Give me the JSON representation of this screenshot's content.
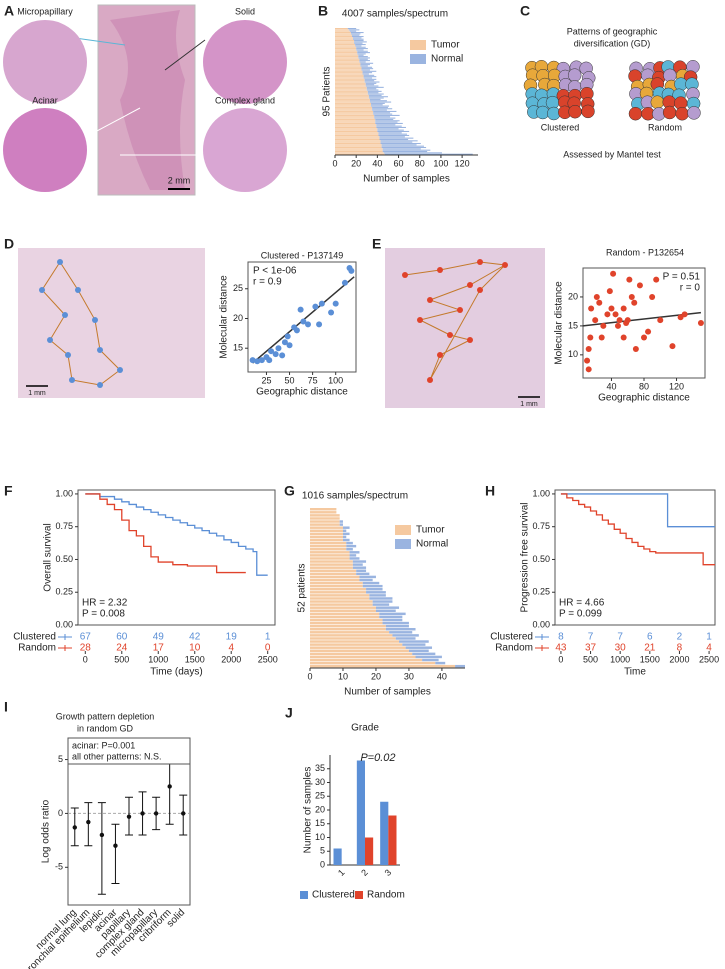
{
  "panel_a": {
    "panel": "A",
    "labels": [
      "Micropapillary",
      "Solid",
      "Acinar",
      "Complex gland"
    ],
    "scale_bar": "2 mm"
  },
  "panel_c": {
    "panel": "C",
    "title": [
      "Patterns of geographic",
      "diversification (GD)"
    ],
    "labels": [
      "Clustered",
      "Random"
    ],
    "footer": "Assessed by Mantel test"
  },
  "panel_d_map": {
    "scale_bar": "1 mm"
  },
  "panel_e_map": {
    "scale_bar": "1 mm"
  },
  "chart_data": [
    {
      "panel": "B",
      "type": "hbar_stacked",
      "title": "4007 samples/spectrum",
      "x_label": "Number of samples",
      "y_label": "95 Patients",
      "xlim": [
        0,
        135
      ],
      "xticks": [
        0,
        20,
        40,
        60,
        80,
        100,
        120
      ],
      "series": [
        {
          "name": "Tumor",
          "color": "#f5c9a0",
          "values": [
            12,
            13,
            14,
            15,
            15,
            16,
            16,
            17,
            17,
            18,
            18,
            18,
            19,
            19,
            20,
            20,
            20,
            21,
            21,
            21,
            22,
            22,
            22,
            23,
            23,
            23,
            24,
            24,
            24,
            25,
            25,
            25,
            26,
            26,
            26,
            27,
            27,
            27,
            28,
            28,
            28,
            29,
            29,
            29,
            30,
            30,
            30,
            31,
            31,
            31,
            32,
            32,
            32,
            33,
            33,
            33,
            34,
            34,
            34,
            35,
            35,
            35,
            36,
            36,
            36,
            37,
            37,
            37,
            38,
            38,
            38,
            38,
            39,
            39,
            39,
            40,
            40,
            40,
            41,
            41,
            41,
            42,
            42,
            42,
            43,
            43,
            43,
            44,
            44,
            44,
            45,
            45,
            45,
            46,
            47
          ]
        },
        {
          "name": "Normal",
          "color": "#9ab4e0",
          "values": [
            8,
            10,
            6,
            12,
            9,
            7,
            11,
            8,
            10,
            9,
            12,
            8,
            10,
            6,
            9,
            11,
            7,
            10,
            12,
            8,
            5,
            9,
            11,
            8,
            10,
            6,
            12,
            9,
            7,
            10,
            11,
            8,
            13,
            9,
            6,
            10,
            12,
            8,
            11,
            9,
            14,
            10,
            8,
            12,
            16,
            9,
            11,
            13,
            10,
            15,
            12,
            18,
            14,
            10,
            16,
            20,
            13,
            11,
            17,
            15,
            19,
            14,
            22,
            16,
            18,
            24,
            15,
            20,
            17,
            23,
            21,
            26,
            18,
            24,
            28,
            20,
            25,
            30,
            22,
            27,
            29,
            24,
            32,
            27,
            35,
            30,
            38,
            33,
            40,
            42,
            36,
            45,
            42,
            55,
            83
          ]
        }
      ]
    },
    {
      "panel": "D",
      "type": "scatter",
      "title": "Clustered - P137149",
      "x_label": "Geographic distance",
      "y_label": "Molecular distance",
      "annotations": [
        "P < 1e-06",
        "r = 0.9"
      ],
      "annotation_corner": "upper left",
      "color": "#5b8fd6",
      "xlim": [
        5,
        122
      ],
      "xticks": [
        25,
        50,
        75,
        100
      ],
      "ylim": [
        11,
        29.5
      ],
      "yticks": [
        15,
        20,
        25
      ],
      "x": [
        10,
        15,
        20,
        25,
        28,
        30,
        35,
        38,
        42,
        45,
        48,
        50,
        55,
        58,
        62,
        65,
        70,
        78,
        82,
        85,
        95,
        100,
        110,
        115,
        117
      ],
      "y": [
        13,
        12.8,
        13,
        13.5,
        13,
        14.5,
        14,
        15,
        13.8,
        16,
        17,
        15.5,
        18.5,
        18,
        21.5,
        19.5,
        19,
        22,
        19,
        22.5,
        21,
        22.5,
        26,
        28.5,
        28
      ],
      "trend": {
        "x": [
          10,
          120
        ],
        "y": [
          12.5,
          27
        ]
      }
    },
    {
      "panel": "E",
      "type": "scatter",
      "title": "Random - P132654",
      "x_label": "Geographic distance",
      "y_label": "Molecular distance",
      "annotations": [
        "P = 0.51",
        "r = 0"
      ],
      "annotation_corner": "upper right",
      "color": "#e0432b",
      "xlim": [
        5,
        155
      ],
      "xticks": [
        40,
        80,
        120
      ],
      "ylim": [
        6,
        25
      ],
      "yticks": [
        10,
        15,
        20
      ],
      "x": [
        10,
        12,
        12,
        14,
        15,
        20,
        22,
        25,
        28,
        30,
        35,
        38,
        40,
        42,
        45,
        48,
        50,
        55,
        55,
        58,
        60,
        62,
        65,
        68,
        70,
        75,
        80,
        85,
        90,
        95,
        100,
        115,
        125,
        130,
        150
      ],
      "y": [
        9,
        7.5,
        11,
        13,
        18,
        16,
        20,
        19,
        13,
        15,
        17,
        21,
        18,
        24,
        17,
        15,
        16,
        13,
        18,
        15.5,
        16,
        23,
        20,
        19,
        11,
        22,
        13,
        14,
        20,
        23,
        16,
        11.5,
        16.5,
        17,
        15.5
      ],
      "trend": {
        "x": [
          5,
          150
        ],
        "y": [
          15,
          17.3
        ]
      }
    },
    {
      "panel": "F",
      "type": "km",
      "x_label": "Time (days)",
      "y_label": "Overall survival",
      "annotations": [
        "HR = 2.32",
        "P = 0.008"
      ],
      "xlim": [
        -100,
        2600
      ],
      "xticks": [
        0,
        500,
        1000,
        1500,
        2000,
        2500
      ],
      "ylim": [
        0,
        1.03
      ],
      "yticks": [
        {
          "value": 0,
          "label": "0.00"
        },
        0.25,
        {
          "value": 0.5,
          "label": "0.50"
        },
        0.75,
        {
          "value": 1,
          "label": "1.00"
        }
      ],
      "series": [
        {
          "name": "Clustered",
          "color": "#5b8fd6",
          "x": [
            0,
            200,
            400,
            500,
            600,
            700,
            800,
            900,
            1000,
            1100,
            1200,
            1300,
            1400,
            1500,
            1600,
            1700,
            1800,
            1900,
            2000,
            2100,
            2200,
            2300,
            2350,
            2450,
            2500
          ],
          "values": [
            1,
            0.98,
            0.96,
            0.94,
            0.92,
            0.9,
            0.88,
            0.86,
            0.84,
            0.82,
            0.8,
            0.78,
            0.76,
            0.74,
            0.72,
            0.7,
            0.68,
            0.65,
            0.63,
            0.6,
            0.58,
            0.56,
            0.38,
            0.38,
            0.38
          ],
          "at_risk": [
            67,
            60,
            49,
            42,
            19,
            1
          ]
        },
        {
          "name": "Random",
          "color": "#e0432b",
          "x": [
            0,
            200,
            300,
            400,
            500,
            600,
            700,
            800,
            900,
            1000,
            1200,
            1400,
            1600,
            1800,
            2000,
            2100,
            2200
          ],
          "values": [
            1,
            0.96,
            0.92,
            0.88,
            0.8,
            0.72,
            0.68,
            0.6,
            0.52,
            0.48,
            0.46,
            0.45,
            0.45,
            0.4,
            0.4,
            0.4,
            0.4
          ],
          "at_risk": [
            28,
            24,
            17,
            10,
            4,
            0
          ]
        }
      ]
    },
    {
      "panel": "G",
      "type": "hbar_stacked",
      "title": "1016 samples/spectrum",
      "x_label": "Number of samples",
      "y_label": "52 patients",
      "xlim": [
        0,
        47
      ],
      "xticks": [
        0,
        10,
        20,
        30,
        40
      ],
      "series": [
        {
          "name": "Tumor",
          "color": "#f5c9a0",
          "values": [
            8,
            8,
            9,
            9,
            9,
            9,
            10,
            10,
            10,
            10,
            10,
            11,
            11,
            11,
            12,
            12,
            12,
            13,
            13,
            13,
            14,
            14,
            15,
            15,
            16,
            16,
            17,
            17,
            18,
            18,
            19,
            19,
            20,
            20,
            21,
            21,
            22,
            22,
            23,
            23,
            24,
            25,
            26,
            27,
            28,
            29,
            30,
            31,
            32,
            34,
            38,
            44
          ]
        },
        {
          "name": "Normal",
          "color": "#9ab4e0",
          "values": [
            0,
            0,
            0,
            0,
            1,
            1,
            2,
            1,
            2,
            1,
            2,
            2,
            3,
            2,
            3,
            2,
            3,
            4,
            3,
            4,
            3,
            4,
            5,
            4,
            5,
            6,
            5,
            6,
            5,
            7,
            6,
            5,
            7,
            6,
            8,
            7,
            6,
            8,
            7,
            9,
            7,
            8,
            6,
            9,
            7,
            8,
            6,
            7,
            8,
            5,
            3,
            3
          ]
        }
      ]
    },
    {
      "panel": "H",
      "type": "km",
      "x_label": "Time",
      "y_label": "Progression free survival",
      "annotations": [
        "HR = 4.66",
        "P = 0.099"
      ],
      "xlim": [
        -100,
        2600
      ],
      "xticks": [
        0,
        500,
        1000,
        1500,
        2000,
        2500
      ],
      "ylim": [
        0,
        1.03
      ],
      "yticks": [
        {
          "value": 0,
          "label": "0.00"
        },
        0.25,
        {
          "value": 0.5,
          "label": "0.50"
        },
        0.75,
        {
          "value": 1,
          "label": "1.00"
        }
      ],
      "series": [
        {
          "name": "Clustered",
          "color": "#5b8fd6",
          "x": [
            0,
            1200,
            1700,
            1800,
            2600
          ],
          "values": [
            1,
            1,
            1,
            0.75,
            0.75
          ],
          "at_risk": [
            8,
            7,
            7,
            6,
            2,
            1
          ]
        },
        {
          "name": "Random",
          "color": "#e0432b",
          "x": [
            0,
            100,
            200,
            300,
            400,
            500,
            600,
            700,
            800,
            900,
            1000,
            1100,
            1200,
            1300,
            1400,
            1500,
            1600,
            1800,
            2000,
            2300,
            2400,
            2600
          ],
          "values": [
            1,
            0.97,
            0.95,
            0.92,
            0.9,
            0.87,
            0.84,
            0.8,
            0.77,
            0.73,
            0.7,
            0.66,
            0.63,
            0.6,
            0.58,
            0.56,
            0.55,
            0.55,
            0.55,
            0.55,
            0.46,
            0.46
          ],
          "at_risk": [
            43,
            37,
            30,
            21,
            8,
            4
          ]
        }
      ]
    },
    {
      "panel": "I",
      "type": "errorbar",
      "title": [
        "Growth pattern depletion",
        "in random GD"
      ],
      "y_label": "Log odds ratio",
      "annotations": [
        "acinar: P=0.001",
        "all other patterns: N.S."
      ],
      "categories": [
        "normal lung",
        "bronchial epithelium",
        "lepidic",
        "acinar",
        "papillary",
        "complex gland",
        "micropapillary",
        "cribriform",
        "solid"
      ],
      "values": [
        -1.3,
        -0.8,
        -2,
        -3,
        -0.3,
        0,
        0,
        2.5,
        0
      ],
      "lower": [
        -3,
        -3,
        -7.5,
        -6.5,
        -2,
        -2,
        -1.5,
        -1,
        -2
      ],
      "upper": [
        0.5,
        1,
        1,
        -1,
        1.5,
        2,
        1.5,
        6,
        1.7
      ],
      "ylim": [
        -8.5,
        7
      ],
      "yticks": [
        -5,
        0,
        5
      ],
      "color": "#111111"
    },
    {
      "panel": "J",
      "type": "bar_grouped",
      "title": "Grade",
      "annotations": [
        "P=0.02"
      ],
      "y_label": "Number of samples",
      "categories": [
        "1",
        "2",
        "3"
      ],
      "ylim": [
        0,
        40
      ],
      "yticks": [
        0,
        5,
        10,
        15,
        20,
        25,
        30,
        35
      ],
      "series": [
        {
          "name": "Clustered",
          "color": "#5b8fd6",
          "values": [
            6,
            38,
            23
          ]
        },
        {
          "name": "Random",
          "color": "#e0432b",
          "values": [
            0,
            10,
            18
          ]
        }
      ]
    }
  ]
}
